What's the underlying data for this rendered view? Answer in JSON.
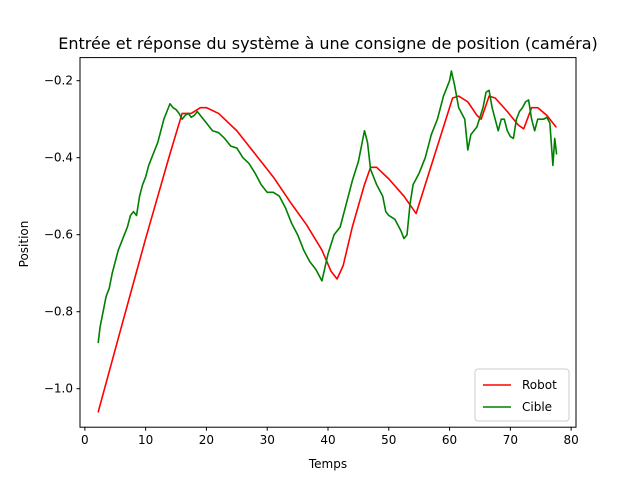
{
  "chart_data": {
    "type": "line",
    "title": "Entrée et réponse du système à une consigne de position (caméra)",
    "xlabel": "Temps",
    "ylabel": "Position",
    "xlim": [
      -0.8,
      80.8
    ],
    "ylim": [
      -1.1,
      -0.14
    ],
    "x_ticks": [
      0,
      10,
      20,
      30,
      40,
      50,
      60,
      70,
      80
    ],
    "y_ticks": [
      -1.0,
      -0.8,
      -0.6,
      -0.4,
      -0.2
    ],
    "x_tick_labels": [
      "0",
      "10",
      "20",
      "30",
      "40",
      "50",
      "60",
      "70",
      "80"
    ],
    "y_tick_labels": [
      "−1.0",
      "−0.8",
      "−0.6",
      "−0.4",
      "−0.2"
    ],
    "grid": false,
    "legend_position": "lower-right",
    "series": [
      {
        "name": "Robot",
        "color": "#ff0000",
        "points": [
          [
            2.2,
            -1.06
          ],
          [
            6,
            -0.84
          ],
          [
            10,
            -0.61
          ],
          [
            14,
            -0.39
          ],
          [
            16,
            -0.285
          ],
          [
            17.5,
            -0.285
          ],
          [
            19,
            -0.27
          ],
          [
            20,
            -0.27
          ],
          [
            22,
            -0.285
          ],
          [
            25,
            -0.33
          ],
          [
            28,
            -0.39
          ],
          [
            31,
            -0.45
          ],
          [
            34,
            -0.52
          ],
          [
            36.5,
            -0.575
          ],
          [
            39,
            -0.64
          ],
          [
            40.5,
            -0.695
          ],
          [
            41.5,
            -0.715
          ],
          [
            42.5,
            -0.68
          ],
          [
            44,
            -0.58
          ],
          [
            46,
            -0.47
          ],
          [
            47,
            -0.425
          ],
          [
            48,
            -0.425
          ],
          [
            50,
            -0.455
          ],
          [
            52.5,
            -0.5
          ],
          [
            54.5,
            -0.545
          ],
          [
            57,
            -0.42
          ],
          [
            60.5,
            -0.245
          ],
          [
            61.5,
            -0.24
          ],
          [
            63,
            -0.255
          ],
          [
            64.5,
            -0.29
          ],
          [
            65.2,
            -0.3
          ],
          [
            66.5,
            -0.24
          ],
          [
            67.5,
            -0.245
          ],
          [
            69.5,
            -0.28
          ],
          [
            71.3,
            -0.315
          ],
          [
            72.2,
            -0.325
          ],
          [
            73.5,
            -0.27
          ],
          [
            74.5,
            -0.27
          ],
          [
            76,
            -0.29
          ],
          [
            77.5,
            -0.32
          ]
        ]
      },
      {
        "name": "Cible",
        "color": "#008000",
        "points": [
          [
            2.2,
            -0.88
          ],
          [
            2.5,
            -0.84
          ],
          [
            3,
            -0.8
          ],
          [
            3.5,
            -0.76
          ],
          [
            4,
            -0.74
          ],
          [
            4.5,
            -0.7
          ],
          [
            5,
            -0.67
          ],
          [
            5.5,
            -0.64
          ],
          [
            6,
            -0.62
          ],
          [
            6.5,
            -0.6
          ],
          [
            7,
            -0.58
          ],
          [
            7.5,
            -0.55
          ],
          [
            8,
            -0.54
          ],
          [
            8.5,
            -0.55
          ],
          [
            9,
            -0.5
          ],
          [
            9.5,
            -0.47
          ],
          [
            10,
            -0.45
          ],
          [
            10.5,
            -0.42
          ],
          [
            11,
            -0.4
          ],
          [
            11.5,
            -0.38
          ],
          [
            12,
            -0.36
          ],
          [
            12.5,
            -0.33
          ],
          [
            13,
            -0.3
          ],
          [
            13.5,
            -0.28
          ],
          [
            14,
            -0.26
          ],
          [
            14.5,
            -0.27
          ],
          [
            15,
            -0.275
          ],
          [
            15.5,
            -0.285
          ],
          [
            16,
            -0.3
          ],
          [
            16.5,
            -0.29
          ],
          [
            17,
            -0.285
          ],
          [
            17.5,
            -0.295
          ],
          [
            18,
            -0.29
          ],
          [
            18.5,
            -0.28
          ],
          [
            19,
            -0.29
          ],
          [
            19.5,
            -0.3
          ],
          [
            20,
            -0.31
          ],
          [
            21,
            -0.33
          ],
          [
            22,
            -0.335
          ],
          [
            23,
            -0.35
          ],
          [
            24,
            -0.37
          ],
          [
            25,
            -0.375
          ],
          [
            26,
            -0.4
          ],
          [
            27,
            -0.415
          ],
          [
            28,
            -0.44
          ],
          [
            29,
            -0.47
          ],
          [
            30,
            -0.49
          ],
          [
            31,
            -0.49
          ],
          [
            32,
            -0.5
          ],
          [
            33,
            -0.53
          ],
          [
            34,
            -0.57
          ],
          [
            35,
            -0.6
          ],
          [
            36,
            -0.64
          ],
          [
            37,
            -0.67
          ],
          [
            38,
            -0.69
          ],
          [
            39,
            -0.72
          ],
          [
            40,
            -0.65
          ],
          [
            41,
            -0.6
          ],
          [
            42,
            -0.58
          ],
          [
            43,
            -0.52
          ],
          [
            44,
            -0.46
          ],
          [
            45,
            -0.41
          ],
          [
            45.5,
            -0.37
          ],
          [
            46,
            -0.33
          ],
          [
            46.5,
            -0.36
          ],
          [
            47,
            -0.43
          ],
          [
            48,
            -0.47
          ],
          [
            49,
            -0.5
          ],
          [
            49.5,
            -0.54
          ],
          [
            50,
            -0.55
          ],
          [
            51,
            -0.56
          ],
          [
            52,
            -0.59
          ],
          [
            52.5,
            -0.61
          ],
          [
            53,
            -0.6
          ],
          [
            53.5,
            -0.52
          ],
          [
            54,
            -0.47
          ],
          [
            55,
            -0.44
          ],
          [
            56,
            -0.4
          ],
          [
            57,
            -0.34
          ],
          [
            58,
            -0.3
          ],
          [
            59,
            -0.24
          ],
          [
            59.5,
            -0.22
          ],
          [
            60,
            -0.2
          ],
          [
            60.3,
            -0.175
          ],
          [
            60.8,
            -0.21
          ],
          [
            61.5,
            -0.27
          ],
          [
            62.5,
            -0.3
          ],
          [
            63,
            -0.38
          ],
          [
            63.5,
            -0.34
          ],
          [
            64.5,
            -0.32
          ],
          [
            65.5,
            -0.27
          ],
          [
            66,
            -0.23
          ],
          [
            66.5,
            -0.225
          ],
          [
            67,
            -0.27
          ],
          [
            67.5,
            -0.3
          ],
          [
            68,
            -0.33
          ],
          [
            68.5,
            -0.3
          ],
          [
            69,
            -0.3
          ],
          [
            69.5,
            -0.33
          ],
          [
            70,
            -0.345
          ],
          [
            70.5,
            -0.35
          ],
          [
            71,
            -0.3
          ],
          [
            71.5,
            -0.28
          ],
          [
            72,
            -0.27
          ],
          [
            72.5,
            -0.255
          ],
          [
            73,
            -0.25
          ],
          [
            73.5,
            -0.3
          ],
          [
            74,
            -0.33
          ],
          [
            74.5,
            -0.3
          ],
          [
            75,
            -0.3
          ],
          [
            75.5,
            -0.3
          ],
          [
            76,
            -0.295
          ],
          [
            76.5,
            -0.31
          ],
          [
            77,
            -0.42
          ],
          [
            77.3,
            -0.35
          ],
          [
            77.6,
            -0.39
          ]
        ]
      }
    ]
  }
}
